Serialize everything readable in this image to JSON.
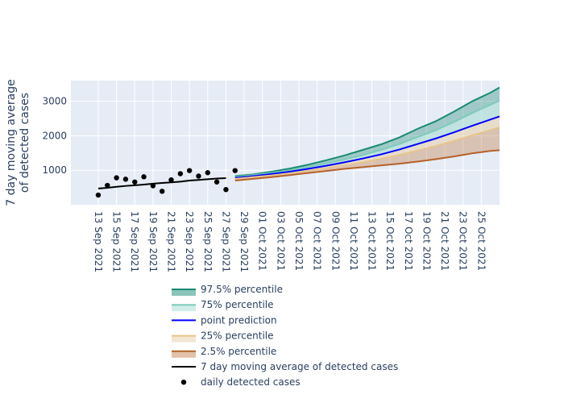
{
  "chart_data": {
    "type": "line",
    "ylabel_lines": [
      "7 day moving average",
      "of detected cases"
    ],
    "xlabel": "",
    "ylim": [
      0,
      3600
    ],
    "yticks": [
      1000,
      2000,
      3000
    ],
    "ytick_labels": [
      "1000",
      "2000",
      "3000"
    ],
    "x_range": [
      "2021-09-10",
      "2021-10-27"
    ],
    "xtick_labels": [
      "13 Sep 2021",
      "15 Sep 2021",
      "17 Sep 2021",
      "19 Sep 2021",
      "21 Sep 2021",
      "23 Sep 2021",
      "25 Sep 2021",
      "27 Sep 2021",
      "29 Sep 2021",
      "01 Oct 2021",
      "03 Oct 2021",
      "05 Oct 2021",
      "07 Oct 2021",
      "09 Oct 2021",
      "11 Oct 2021",
      "13 Oct 2021",
      "15 Oct 2021",
      "17 Oct 2021",
      "19 Oct 2021",
      "21 Oct 2021",
      "23 Oct 2021",
      "25 Oct 2021"
    ],
    "xtick_dates": [
      "2021-09-13",
      "2021-09-15",
      "2021-09-17",
      "2021-09-19",
      "2021-09-21",
      "2021-09-23",
      "2021-09-25",
      "2021-09-27",
      "2021-09-29",
      "2021-10-01",
      "2021-10-03",
      "2021-10-05",
      "2021-10-07",
      "2021-10-09",
      "2021-10-11",
      "2021-10-13",
      "2021-10-15",
      "2021-10-17",
      "2021-10-19",
      "2021-10-21",
      "2021-10-23",
      "2021-10-25"
    ],
    "forecast_dates": [
      "2021-09-28",
      "2021-09-30",
      "2021-10-02",
      "2021-10-04",
      "2021-10-06",
      "2021-10-08",
      "2021-10-10",
      "2021-10-12",
      "2021-10-14",
      "2021-10-16",
      "2021-10-18",
      "2021-10-20",
      "2021-10-22",
      "2021-10-24",
      "2021-10-26",
      "2021-10-27"
    ],
    "series": [
      {
        "name": "97.5% percentile",
        "color": "#1a8a73",
        "fill": "#1a8a73",
        "values": [
          830,
          880,
          960,
          1050,
          1160,
          1290,
          1430,
          1590,
          1750,
          1950,
          2200,
          2420,
          2700,
          3000,
          3250,
          3400
        ]
      },
      {
        "name": "75% percentile",
        "color": "#7dcbbc",
        "fill": "#a3dbd0",
        "values": [
          800,
          860,
          920,
          1000,
          1090,
          1200,
          1310,
          1440,
          1590,
          1760,
          1960,
          2160,
          2400,
          2660,
          2900,
          3020
        ]
      },
      {
        "name": "point prediction",
        "color": "#0000ff",
        "values": [
          780,
          830,
          890,
          960,
          1040,
          1130,
          1230,
          1340,
          1460,
          1600,
          1760,
          1920,
          2100,
          2290,
          2470,
          2560
        ]
      },
      {
        "name": "25% percentile",
        "color": "#e6c48d",
        "fill": "#e8cfa5",
        "values": [
          750,
          800,
          850,
          910,
          980,
          1060,
          1140,
          1230,
          1330,
          1440,
          1570,
          1700,
          1850,
          2010,
          2160,
          2240
        ]
      },
      {
        "name": "2.5% percentile",
        "color": "#b5622a",
        "fill": "#c68452",
        "values": [
          700,
          750,
          800,
          860,
          920,
          980,
          1040,
          1090,
          1140,
          1190,
          1250,
          1320,
          1400,
          1490,
          1560,
          1580
        ]
      }
    ],
    "moving_average": {
      "name": "7 day moving average of detected cases",
      "color": "#000000",
      "dates": [
        "2021-09-13",
        "2021-09-14",
        "2021-09-15",
        "2021-09-16",
        "2021-09-17",
        "2021-09-18",
        "2021-09-19",
        "2021-09-20",
        "2021-09-21",
        "2021-09-22",
        "2021-09-23",
        "2021-09-24",
        "2021-09-25",
        "2021-09-26",
        "2021-09-27"
      ],
      "values": [
        470,
        490,
        520,
        545,
        565,
        585,
        610,
        630,
        650,
        670,
        700,
        720,
        740,
        760,
        770
      ]
    },
    "daily": {
      "name": "daily detected cases",
      "color": "#000000",
      "dates": [
        "2021-09-13",
        "2021-09-14",
        "2021-09-15",
        "2021-09-16",
        "2021-09-17",
        "2021-09-18",
        "2021-09-19",
        "2021-09-20",
        "2021-09-21",
        "2021-09-22",
        "2021-09-23",
        "2021-09-24",
        "2021-09-25",
        "2021-09-26",
        "2021-09-27",
        "2021-09-28"
      ],
      "values": [
        280,
        560,
        780,
        740,
        660,
        810,
        550,
        390,
        720,
        900,
        990,
        830,
        930,
        660,
        440,
        990
      ]
    },
    "legend": "bottom"
  }
}
